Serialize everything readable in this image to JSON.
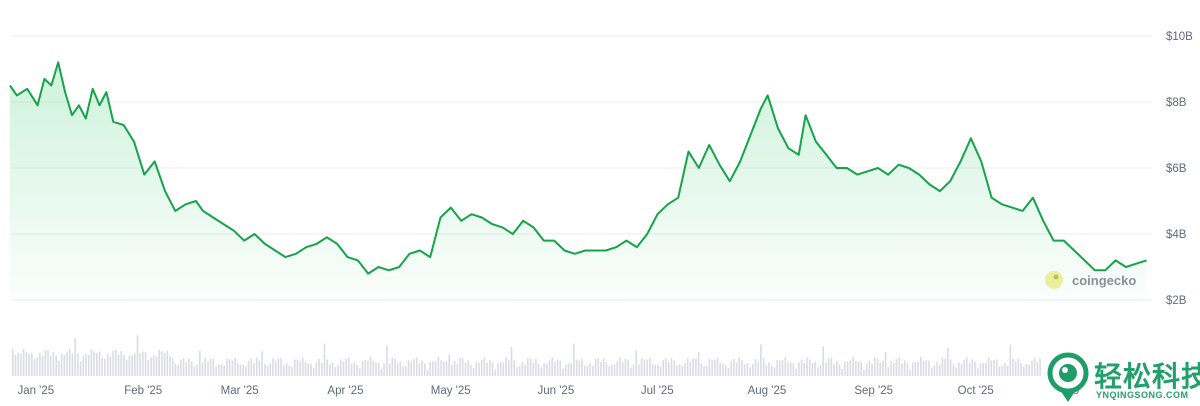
{
  "chart_data": {
    "type": "area",
    "title": "",
    "xlabel": "",
    "ylabel": "",
    "ylim": [
      1.5,
      10
    ],
    "y_ticks": [
      {
        "value": 10,
        "label": "$10B"
      },
      {
        "value": 8,
        "label": "$8B"
      },
      {
        "value": 6,
        "label": "$6B"
      },
      {
        "value": 4,
        "label": "$4B"
      },
      {
        "value": 2,
        "label": "$2B"
      }
    ],
    "x_ticks": [
      {
        "date": "2025-01-01",
        "label": "Jan '25"
      },
      {
        "date": "2025-02-01",
        "label": "Feb '25"
      },
      {
        "date": "2025-03-01",
        "label": "Mar '25"
      },
      {
        "date": "2025-04-01",
        "label": "Apr '25"
      },
      {
        "date": "2025-05-01",
        "label": "May '25"
      },
      {
        "date": "2025-06-01",
        "label": "Jun '25"
      },
      {
        "date": "2025-07-01",
        "label": "Jul '25"
      },
      {
        "date": "2025-08-01",
        "label": "Aug '25"
      },
      {
        "date": "2025-09-01",
        "label": "Sep '25"
      },
      {
        "date": "2025-10-01",
        "label": "Oct '25"
      },
      {
        "date": "2025-11-01",
        "label": "No"
      }
    ],
    "grid": true,
    "line_color": "#16a34a",
    "fill_color": "#22c55e",
    "volume_color": "#d9dde3",
    "series": [
      {
        "values": [
          [
            "2024-12-31",
            8.5
          ],
          [
            "2025-01-02",
            8.2
          ],
          [
            "2025-01-05",
            8.4
          ],
          [
            "2025-01-08",
            7.9
          ],
          [
            "2025-01-10",
            8.7
          ],
          [
            "2025-01-12",
            8.5
          ],
          [
            "2025-01-14",
            9.2
          ],
          [
            "2025-01-16",
            8.3
          ],
          [
            "2025-01-18",
            7.6
          ],
          [
            "2025-01-20",
            7.9
          ],
          [
            "2025-01-22",
            7.5
          ],
          [
            "2025-01-24",
            8.4
          ],
          [
            "2025-01-26",
            7.9
          ],
          [
            "2025-01-28",
            8.3
          ],
          [
            "2025-01-30",
            7.4
          ],
          [
            "2025-02-02",
            7.3
          ],
          [
            "2025-02-05",
            6.8
          ],
          [
            "2025-02-08",
            5.8
          ],
          [
            "2025-02-11",
            6.2
          ],
          [
            "2025-02-14",
            5.3
          ],
          [
            "2025-02-17",
            4.7
          ],
          [
            "2025-02-20",
            4.9
          ],
          [
            "2025-02-23",
            5.0
          ],
          [
            "2025-02-25",
            4.7
          ],
          [
            "2025-02-28",
            4.5
          ],
          [
            "2025-03-03",
            4.3
          ],
          [
            "2025-03-06",
            4.1
          ],
          [
            "2025-03-09",
            3.8
          ],
          [
            "2025-03-12",
            4.0
          ],
          [
            "2025-03-15",
            3.7
          ],
          [
            "2025-03-18",
            3.5
          ],
          [
            "2025-03-21",
            3.3
          ],
          [
            "2025-03-24",
            3.4
          ],
          [
            "2025-03-27",
            3.6
          ],
          [
            "2025-03-30",
            3.7
          ],
          [
            "2025-04-02",
            3.9
          ],
          [
            "2025-04-05",
            3.7
          ],
          [
            "2025-04-08",
            3.3
          ],
          [
            "2025-04-11",
            3.2
          ],
          [
            "2025-04-14",
            2.8
          ],
          [
            "2025-04-17",
            3.0
          ],
          [
            "2025-04-20",
            2.9
          ],
          [
            "2025-04-23",
            3.0
          ],
          [
            "2025-04-26",
            3.4
          ],
          [
            "2025-04-29",
            3.5
          ],
          [
            "2025-05-02",
            3.3
          ],
          [
            "2025-05-05",
            4.5
          ],
          [
            "2025-05-08",
            4.8
          ],
          [
            "2025-05-11",
            4.4
          ],
          [
            "2025-05-14",
            4.6
          ],
          [
            "2025-05-17",
            4.5
          ],
          [
            "2025-05-20",
            4.3
          ],
          [
            "2025-05-23",
            4.2
          ],
          [
            "2025-05-26",
            4.0
          ],
          [
            "2025-05-29",
            4.4
          ],
          [
            "2025-06-01",
            4.2
          ],
          [
            "2025-06-04",
            3.8
          ],
          [
            "2025-06-07",
            3.8
          ],
          [
            "2025-06-10",
            3.5
          ],
          [
            "2025-06-13",
            3.4
          ],
          [
            "2025-06-16",
            3.5
          ],
          [
            "2025-06-19",
            3.5
          ],
          [
            "2025-06-22",
            3.5
          ],
          [
            "2025-06-25",
            3.6
          ],
          [
            "2025-06-28",
            3.8
          ],
          [
            "2025-07-01",
            3.6
          ],
          [
            "2025-07-04",
            4.0
          ],
          [
            "2025-07-07",
            4.6
          ],
          [
            "2025-07-10",
            4.9
          ],
          [
            "2025-07-13",
            5.1
          ],
          [
            "2025-07-16",
            6.5
          ],
          [
            "2025-07-19",
            6.0
          ],
          [
            "2025-07-22",
            6.7
          ],
          [
            "2025-07-25",
            6.1
          ],
          [
            "2025-07-28",
            5.6
          ],
          [
            "2025-07-31",
            6.2
          ],
          [
            "2025-08-03",
            7.0
          ],
          [
            "2025-08-06",
            7.8
          ],
          [
            "2025-08-08",
            8.2
          ],
          [
            "2025-08-11",
            7.2
          ],
          [
            "2025-08-14",
            6.6
          ],
          [
            "2025-08-17",
            6.4
          ],
          [
            "2025-08-19",
            7.6
          ],
          [
            "2025-08-22",
            6.8
          ],
          [
            "2025-08-25",
            6.4
          ],
          [
            "2025-08-28",
            6.0
          ],
          [
            "2025-08-31",
            6.0
          ],
          [
            "2025-09-03",
            5.8
          ],
          [
            "2025-09-06",
            5.9
          ],
          [
            "2025-09-09",
            6.0
          ],
          [
            "2025-09-12",
            5.8
          ],
          [
            "2025-09-15",
            6.1
          ],
          [
            "2025-09-18",
            6.0
          ],
          [
            "2025-09-21",
            5.8
          ],
          [
            "2025-09-24",
            5.5
          ],
          [
            "2025-09-27",
            5.3
          ],
          [
            "2025-09-30",
            5.6
          ],
          [
            "2025-10-03",
            6.2
          ],
          [
            "2025-10-06",
            6.9
          ],
          [
            "2025-10-09",
            6.2
          ],
          [
            "2025-10-12",
            5.1
          ],
          [
            "2025-10-15",
            4.9
          ],
          [
            "2025-10-18",
            4.8
          ],
          [
            "2025-10-21",
            4.7
          ],
          [
            "2025-10-24",
            5.1
          ],
          [
            "2025-10-27",
            4.4
          ],
          [
            "2025-10-30",
            3.8
          ],
          [
            "2025-11-02",
            3.8
          ],
          [
            "2025-11-05",
            3.5
          ],
          [
            "2025-11-08",
            3.2
          ],
          [
            "2025-11-11",
            2.9
          ],
          [
            "2025-11-14",
            2.9
          ],
          [
            "2025-11-17",
            3.2
          ],
          [
            "2025-11-20",
            3.0
          ],
          [
            "2025-11-23",
            3.1
          ],
          [
            "2025-11-26",
            3.2
          ]
        ]
      }
    ]
  },
  "watermark": {
    "text": "coingecko"
  },
  "brand": {
    "chinese": "轻松科技",
    "latin": "YNQINGSONG.COM"
  }
}
